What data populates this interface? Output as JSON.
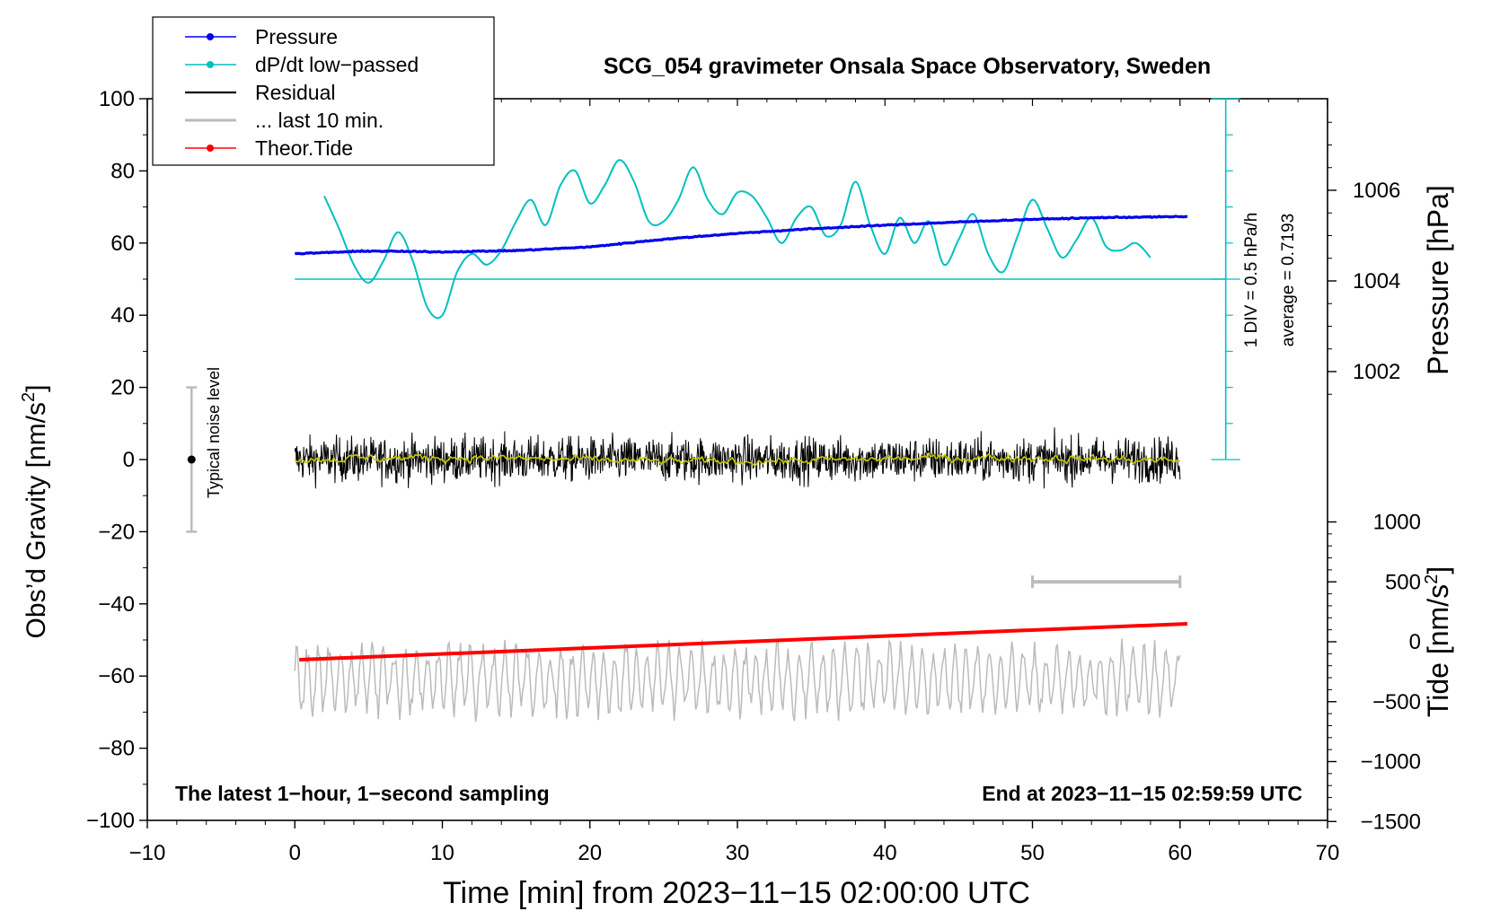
{
  "chart_data": {
    "type": "line",
    "title": "SCG_054 gravimeter Onsala Space Observatory, Sweden",
    "xlabel": "Time [min] from 2023−11−15 02:00:00 UTC",
    "ylabel_main": "Obs’d Gravity [nm/s",
    "ylabel_main_sup": "2",
    "ylabel_main_close": "]",
    "ylabel_pressure": "Pressure [hPa]",
    "ylabel_tide": "Tide [nm/s",
    "ylabel_tide_sup": "2",
    "ylabel_tide_close": "]",
    "xlim": [
      -10,
      70
    ],
    "ylim": [
      -100,
      100
    ],
    "x_ticks": [
      -10,
      0,
      10,
      20,
      30,
      40,
      50,
      60,
      70
    ],
    "x_tick_labels": [
      "−10",
      "0",
      "10",
      "20",
      "30",
      "40",
      "50",
      "60",
      "70"
    ],
    "y_ticks": [
      -100,
      -80,
      -60,
      -40,
      -20,
      0,
      20,
      40,
      60,
      80,
      100
    ],
    "y_tick_labels": [
      "−100",
      "−80",
      "−60",
      "−40",
      "−20",
      "0",
      "20",
      "40",
      "60",
      "80",
      "100"
    ],
    "pressure_axis": {
      "ticks": [
        1002,
        1004,
        1006
      ],
      "tick_labels": [
        "1002",
        "1004",
        "1006"
      ],
      "range": [
        1000,
        1008
      ]
    },
    "tide_axis": {
      "ticks": [
        -1500,
        -1000,
        -500,
        0,
        500,
        1000
      ],
      "tick_labels": [
        "−1500",
        "−1000",
        "−500",
        "0",
        "500",
        "1000"
      ],
      "range": [
        -1500,
        1000
      ]
    },
    "legend": {
      "position": "top-left",
      "entries": [
        {
          "label": "Pressure",
          "color": "#0000ee",
          "marker": true
        },
        {
          "label": "dP/dt low−passed",
          "color": "#00c0c0",
          "marker": true
        },
        {
          "label": "Residual",
          "color": "#000000",
          "marker": false
        },
        {
          "label": "... last 10 min.",
          "color": "#bbbbbb",
          "marker": false
        },
        {
          "label": "Theor.Tide",
          "color": "#ff0000",
          "marker": true
        }
      ]
    },
    "annotations": {
      "noise_label": "Typical noise level",
      "noise_range": [
        -20,
        20
      ],
      "noise_x": -7,
      "dpdt_scale": "1 DIV = 0.5 hPa/h",
      "dpdt_average": "average = 0.7193",
      "bottom_left": "The latest 1−hour, 1−second sampling",
      "bottom_right": "End at 2023−11−15 02:59:59 UTC",
      "last10_bar": [
        50,
        60
      ],
      "last10_bar_tide": 500
    },
    "series": [
      {
        "name": "Pressure",
        "axis": "pressure",
        "color": "#0000ee",
        "x": [
          0,
          5,
          10,
          15,
          20,
          25,
          30,
          35,
          40,
          45,
          50,
          55,
          60.5
        ],
        "values": [
          1004.6,
          1004.66,
          1004.64,
          1004.67,
          1004.75,
          1004.92,
          1005.05,
          1005.15,
          1005.23,
          1005.3,
          1005.36,
          1005.4,
          1005.42
        ]
      },
      {
        "name": "dP/dt low-passed",
        "axis": "gravity_display",
        "color": "#00c0c0",
        "baseline": 50,
        "x": [
          2,
          3,
          4,
          5,
          6,
          7,
          8,
          9,
          10,
          11,
          12,
          13,
          14,
          15,
          16,
          17,
          18,
          19,
          20,
          21,
          22,
          23,
          24,
          25,
          26,
          27,
          28,
          29,
          30,
          31,
          32,
          33,
          34,
          35,
          36,
          37,
          38,
          39,
          40,
          41,
          42,
          43,
          44,
          45,
          46,
          47,
          48,
          49,
          50,
          51,
          52,
          53,
          54,
          55,
          56,
          57,
          58
        ],
        "values": [
          73,
          64,
          54,
          49,
          55,
          63,
          55,
          42,
          40,
          52,
          57,
          54,
          58,
          66,
          72,
          65,
          76,
          80,
          71,
          76,
          83,
          77,
          66,
          66,
          72,
          81,
          72,
          68,
          74,
          73,
          67,
          60,
          67,
          70,
          62,
          65,
          77,
          65,
          57,
          67,
          60,
          66,
          54,
          61,
          68,
          57,
          52,
          62,
          72,
          64,
          56,
          61,
          67,
          59,
          58,
          60,
          56
        ]
      },
      {
        "name": "Residual",
        "axis": "gravity",
        "color": "#000000",
        "x_range": [
          0,
          60
        ],
        "amplitude_range": [
          -16,
          16
        ]
      },
      {
        "name": "Residual (smoothed)",
        "axis": "gravity",
        "color": "#c8c800",
        "x_range": [
          0,
          60
        ],
        "amplitude_range": [
          -2,
          2
        ]
      },
      {
        "name": "Theor.Tide",
        "axis": "tide",
        "color": "#ff0000",
        "x": [
          0.3,
          60.5
        ],
        "values": [
          -150,
          150
        ]
      },
      {
        "name": "... last 10 min.",
        "axis": "gravity",
        "color": "#bbbbbb",
        "x_range": [
          0,
          60
        ],
        "center": -61,
        "amplitude_range": [
          -78,
          -46
        ]
      }
    ]
  }
}
